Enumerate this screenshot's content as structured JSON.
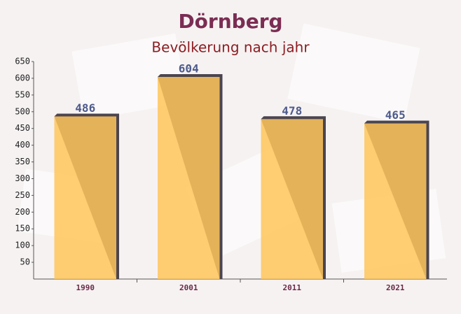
{
  "chart_data": {
    "type": "bar",
    "title": "Dörnberg",
    "subtitle": "Bevölkerung nach jahr",
    "categories": [
      "1990",
      "2001",
      "2011",
      "2021"
    ],
    "values": [
      486,
      604,
      478,
      465
    ],
    "color": "#ffc55a",
    "ylim": [
      0,
      650
    ],
    "yticks": [
      50,
      100,
      150,
      200,
      250,
      300,
      350,
      400,
      450,
      500,
      550,
      600,
      650
    ],
    "grid": false
  }
}
